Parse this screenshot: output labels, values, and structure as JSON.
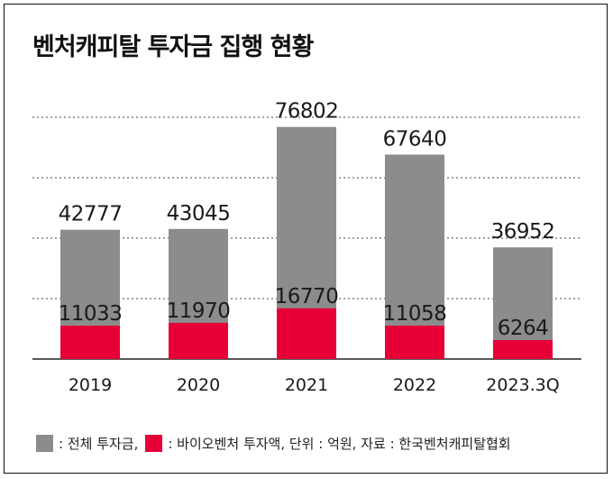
{
  "title": "벤처캐피탈 투자금 집행 현황",
  "colors": {
    "total": "#8c8c8c",
    "bio": "#e60036",
    "grid": "#444444",
    "axis": "#222222"
  },
  "legend": {
    "total_label": ": 전체 투자금,",
    "bio_label": ": 바이오벤처 투자액, 단위 : 억원, 자료 : 한국벤처캐피탈협회"
  },
  "chart_data": {
    "type": "bar",
    "categories": [
      "2019",
      "2020",
      "2021",
      "2022",
      "2023.3Q"
    ],
    "series": [
      {
        "key": "total",
        "values": [
          42777,
          43045,
          76802,
          67640,
          36952
        ]
      },
      {
        "key": "bio",
        "values": [
          11033,
          11970,
          16770,
          11058,
          6264
        ]
      }
    ],
    "ylim": [
      0,
      80000
    ],
    "grid": true
  }
}
